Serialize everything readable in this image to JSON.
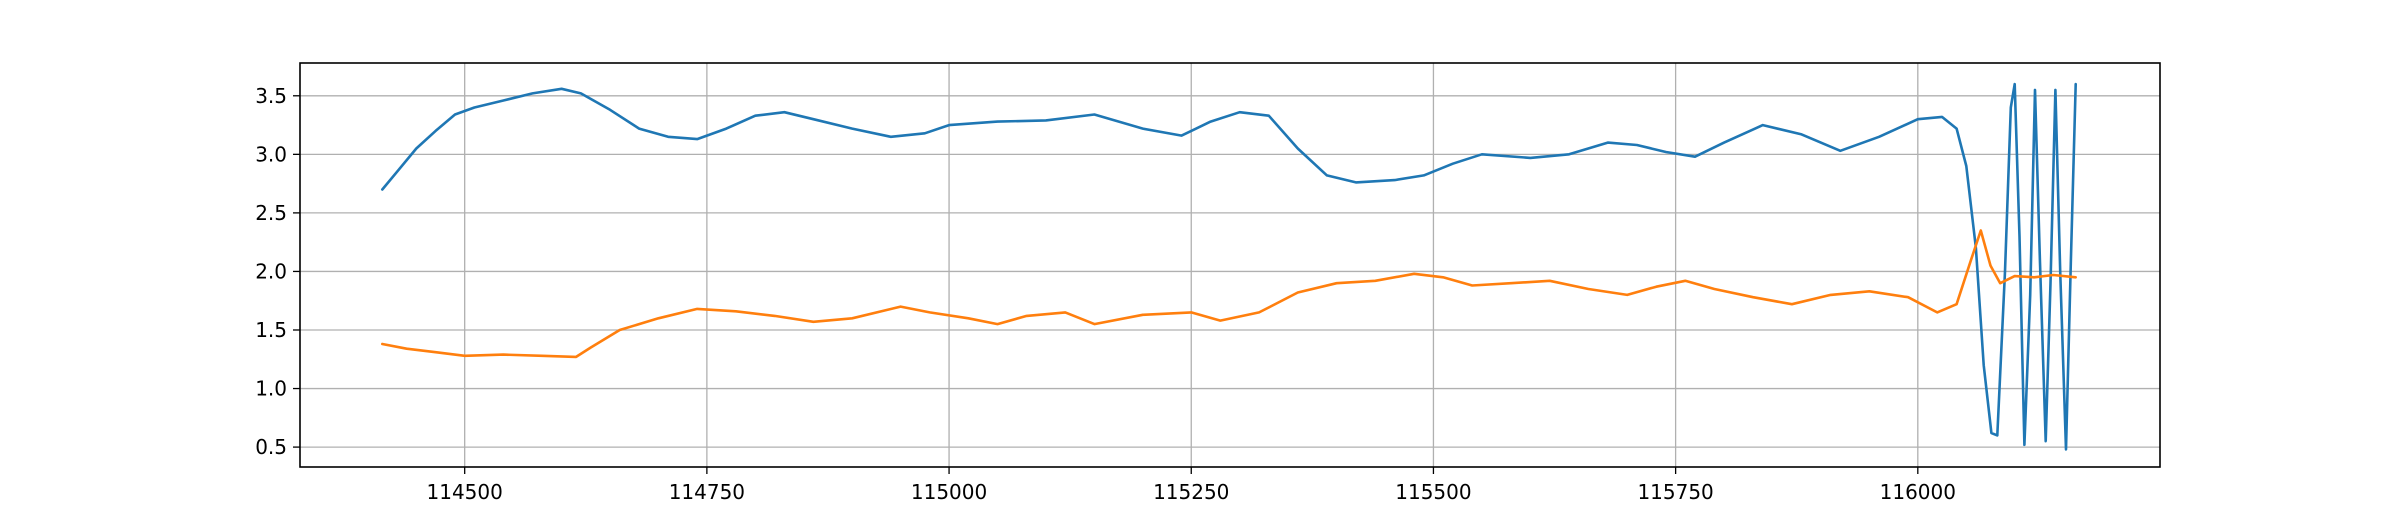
{
  "chart_data": {
    "type": "line",
    "title": "",
    "xlabel": "",
    "ylabel": "",
    "xlim": [
      114330,
      116250
    ],
    "ylim": [
      0.33,
      3.78
    ],
    "grid": true,
    "x_ticks": [
      114500,
      114750,
      115000,
      115250,
      115500,
      115750,
      116000
    ],
    "y_ticks": [
      0.5,
      1.0,
      1.5,
      2.0,
      2.5,
      3.0,
      3.5
    ],
    "x_tick_labels": [
      "114500",
      "114750",
      "115000",
      "115250",
      "115500",
      "115750",
      "116000"
    ],
    "y_tick_labels": [
      "0.5",
      "1.0",
      "1.5",
      "2.0",
      "2.5",
      "3.0",
      "3.5"
    ],
    "series": [
      {
        "color": "#1f77b4",
        "x": [
          114415,
          114430,
          114450,
          114470,
          114490,
          114510,
          114540,
          114570,
          114600,
          114620,
          114650,
          114680,
          114710,
          114740,
          114770,
          114800,
          114830,
          114860,
          114900,
          114940,
          114975,
          115000,
          115050,
          115100,
          115150,
          115200,
          115240,
          115270,
          115300,
          115330,
          115360,
          115390,
          115420,
          115460,
          115490,
          115520,
          115550,
          115600,
          115640,
          115680,
          115710,
          115740,
          115770,
          115800,
          115840,
          115880,
          115920,
          115960,
          116000,
          116025,
          116040,
          116050,
          116060,
          116068,
          116076,
          116082,
          116090,
          116096,
          116100,
          116105,
          116110,
          116116,
          116121,
          116126,
          116132,
          116137,
          116142,
          116147,
          116153,
          116158,
          116163
        ],
        "y": [
          2.7,
          2.85,
          3.05,
          3.2,
          3.34,
          3.4,
          3.46,
          3.52,
          3.56,
          3.52,
          3.38,
          3.22,
          3.15,
          3.13,
          3.22,
          3.33,
          3.36,
          3.3,
          3.22,
          3.15,
          3.18,
          3.25,
          3.28,
          3.29,
          3.34,
          3.22,
          3.16,
          3.28,
          3.36,
          3.33,
          3.05,
          2.82,
          2.76,
          2.78,
          2.82,
          2.92,
          3.0,
          2.97,
          3.0,
          3.1,
          3.08,
          3.02,
          2.98,
          3.1,
          3.25,
          3.17,
          3.03,
          3.15,
          3.3,
          3.32,
          3.22,
          2.9,
          2.2,
          1.2,
          0.62,
          0.6,
          2.0,
          3.4,
          3.6,
          2.3,
          0.52,
          1.8,
          3.55,
          2.1,
          0.55,
          1.9,
          3.55,
          2.0,
          0.48,
          2.1,
          3.6
        ]
      },
      {
        "color": "#ff7f0e",
        "x": [
          114415,
          114440,
          114470,
          114500,
          114540,
          114580,
          114615,
          114630,
          114660,
          114700,
          114740,
          114780,
          114820,
          114860,
          114900,
          114950,
          114980,
          115020,
          115050,
          115080,
          115120,
          115150,
          115200,
          115250,
          115280,
          115320,
          115360,
          115400,
          115440,
          115480,
          115510,
          115540,
          115580,
          115620,
          115660,
          115700,
          115730,
          115760,
          115790,
          115830,
          115870,
          115910,
          115950,
          115990,
          116020,
          116040,
          116055,
          116065,
          116075,
          116085,
          116100,
          116120,
          116140,
          116163
        ],
        "y": [
          1.38,
          1.34,
          1.31,
          1.28,
          1.29,
          1.28,
          1.27,
          1.35,
          1.5,
          1.6,
          1.68,
          1.66,
          1.62,
          1.57,
          1.6,
          1.7,
          1.65,
          1.6,
          1.55,
          1.62,
          1.65,
          1.55,
          1.63,
          1.65,
          1.58,
          1.65,
          1.82,
          1.9,
          1.92,
          1.98,
          1.95,
          1.88,
          1.9,
          1.92,
          1.85,
          1.8,
          1.87,
          1.92,
          1.85,
          1.78,
          1.72,
          1.8,
          1.83,
          1.78,
          1.65,
          1.72,
          2.1,
          2.35,
          2.05,
          1.9,
          1.96,
          1.95,
          1.97,
          1.95
        ]
      }
    ]
  }
}
